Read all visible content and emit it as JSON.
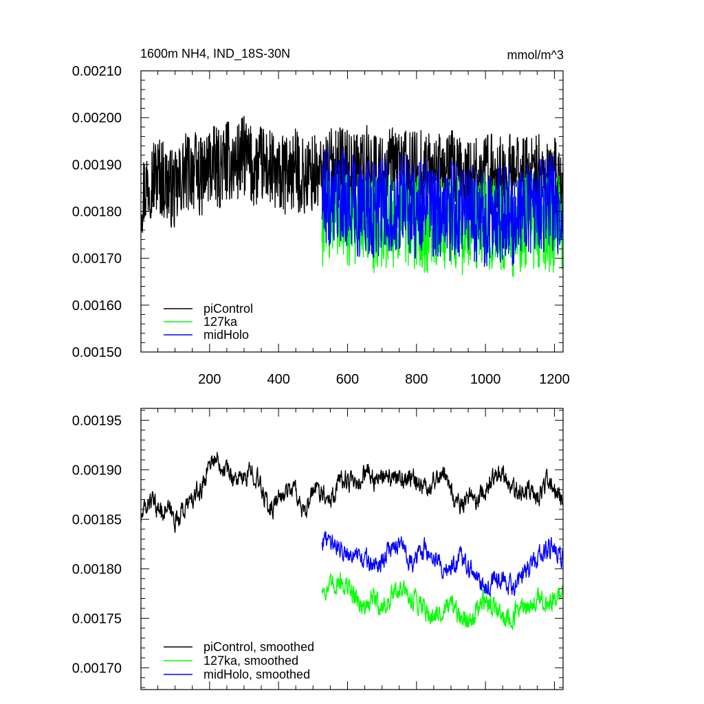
{
  "chart_data": [
    {
      "type": "line",
      "title": "1600m NH4, IND_18S-30N",
      "units": "mmol/m^3",
      "xlabel": "",
      "ylabel": "",
      "xlim": [
        1,
        1225
      ],
      "ylim": [
        0.0015,
        0.0021
      ],
      "x_ticks": [
        200,
        400,
        600,
        800,
        1000,
        1200
      ],
      "y_ticks": [
        0.0015,
        0.0016,
        0.0017,
        0.0018,
        0.0019,
        0.002,
        0.0021
      ],
      "y_tick_labels": [
        "0.00150",
        "0.00160",
        "0.00170",
        "0.00180",
        "0.00190",
        "0.00200",
        "0.00210"
      ],
      "grid": false,
      "legend_position": "bottom-left",
      "series": [
        {
          "name": "piControl",
          "color": "#000000",
          "x_start": 1,
          "x_step": 25,
          "values": [
            0.00183,
            0.00187,
            0.00188,
            0.00186,
            0.00184,
            0.00188,
            0.00189,
            0.00187,
            0.0019,
            0.00189,
            0.00191,
            0.0019,
            0.00192,
            0.00189,
            0.0019,
            0.00189,
            0.00187,
            0.00188,
            0.00189,
            0.00187,
            0.00188,
            0.00187,
            0.00189,
            0.0019,
            0.00189,
            0.00188,
            0.0019,
            0.00189,
            0.00188,
            0.00189,
            0.0019,
            0.00188,
            0.00189,
            0.00189,
            0.00188,
            0.00188,
            0.00189,
            0.00187,
            0.00187,
            0.00187,
            0.00188,
            0.00188,
            0.00187,
            0.00188,
            0.00188,
            0.00187,
            0.00188,
            0.00187,
            0.00187,
            0.00187
          ],
          "range": [
            0.00174,
            0.00205
          ]
        },
        {
          "name": "127ka",
          "color": "#00ff00",
          "x_start": 526,
          "x_step": 25,
          "values": [
            0.00178,
            0.00179,
            0.0018,
            0.00178,
            0.00179,
            0.00178,
            0.00177,
            0.00177,
            0.00178,
            0.00179,
            0.00178,
            0.00178,
            0.00177,
            0.00176,
            0.00177,
            0.00178,
            0.00177,
            0.00176,
            0.00178,
            0.00178,
            0.00177,
            0.00177,
            0.00176,
            0.00177,
            0.00178,
            0.00178,
            0.00177,
            0.00177,
            0.00178
          ],
          "range": [
            0.00159,
            0.00196
          ]
        },
        {
          "name": "midHolo",
          "color": "#0000ff",
          "x_start": 526,
          "x_step": 25,
          "values": [
            0.00183,
            0.00183,
            0.00184,
            0.00182,
            0.00181,
            0.00181,
            0.0018,
            0.00181,
            0.00182,
            0.00182,
            0.00181,
            0.0018,
            0.00181,
            0.0018,
            0.00179,
            0.0018,
            0.00181,
            0.0018,
            0.00179,
            0.00178,
            0.00179,
            0.0018,
            0.00179,
            0.0018,
            0.00181,
            0.00182,
            0.00182,
            0.00182,
            0.00181
          ],
          "range": [
            0.00162,
            0.002
          ]
        }
      ]
    },
    {
      "type": "line",
      "title": "",
      "xlabel": "",
      "ylabel": "",
      "xlim": [
        1,
        1225
      ],
      "ylim": [
        0.001678,
        0.001962
      ],
      "x_ticks": [
        200,
        400,
        600,
        800,
        1000,
        1200
      ],
      "y_ticks": [
        0.0017,
        0.00175,
        0.0018,
        0.00185,
        0.0019,
        0.00195
      ],
      "y_tick_labels": [
        "0.00170",
        "0.00175",
        "0.00180",
        "0.00185",
        "0.00190",
        "0.00195"
      ],
      "grid": false,
      "legend_position": "bottom-left",
      "series": [
        {
          "name": "piControl, smoothed",
          "color": "#000000",
          "x_start": 1,
          "x_step": 25,
          "values": [
            0.00185,
            0.00187,
            0.00186,
            0.00186,
            0.00185,
            0.00186,
            0.00187,
            0.00188,
            0.00191,
            0.00191,
            0.0019,
            0.00189,
            0.00189,
            0.0019,
            0.00188,
            0.00186,
            0.00187,
            0.00188,
            0.00188,
            0.00185,
            0.00188,
            0.00188,
            0.00187,
            0.00189,
            0.00189,
            0.00188,
            0.0019,
            0.00189,
            0.00189,
            0.00189,
            0.00189,
            0.00189,
            0.00189,
            0.00188,
            0.00189,
            0.0019,
            0.00188,
            0.00186,
            0.00187,
            0.00187,
            0.00188,
            0.00189,
            0.0019,
            0.00188,
            0.00188,
            0.00188,
            0.00187,
            0.00189,
            0.00188,
            0.00187
          ],
          "range": [
            0.00183,
            0.00194
          ]
        },
        {
          "name": "127ka, smoothed",
          "color": "#00ff00",
          "x_start": 526,
          "x_step": 25,
          "values": [
            0.00178,
            0.00178,
            0.00179,
            0.00178,
            0.00177,
            0.00176,
            0.00177,
            0.00176,
            0.00177,
            0.00178,
            0.00177,
            0.00177,
            0.00176,
            0.00175,
            0.00176,
            0.00176,
            0.00175,
            0.00175,
            0.00176,
            0.00177,
            0.00176,
            0.00175,
            0.00175,
            0.00176,
            0.00176,
            0.00177,
            0.00176,
            0.00177,
            0.00178
          ],
          "range": [
            0.0017,
            0.00182
          ]
        },
        {
          "name": "midHolo, smoothed",
          "color": "#0000ff",
          "x_start": 526,
          "x_step": 25,
          "values": [
            0.00183,
            0.00183,
            0.00182,
            0.00182,
            0.00181,
            0.00181,
            0.0018,
            0.00181,
            0.00182,
            0.00183,
            0.00181,
            0.00181,
            0.00182,
            0.00181,
            0.0018,
            0.0018,
            0.00181,
            0.0018,
            0.00179,
            0.00178,
            0.00179,
            0.00179,
            0.00178,
            0.00179,
            0.0018,
            0.00181,
            0.00182,
            0.00182,
            0.00181
          ],
          "range": [
            0.00176,
            0.00187
          ]
        }
      ]
    }
  ]
}
